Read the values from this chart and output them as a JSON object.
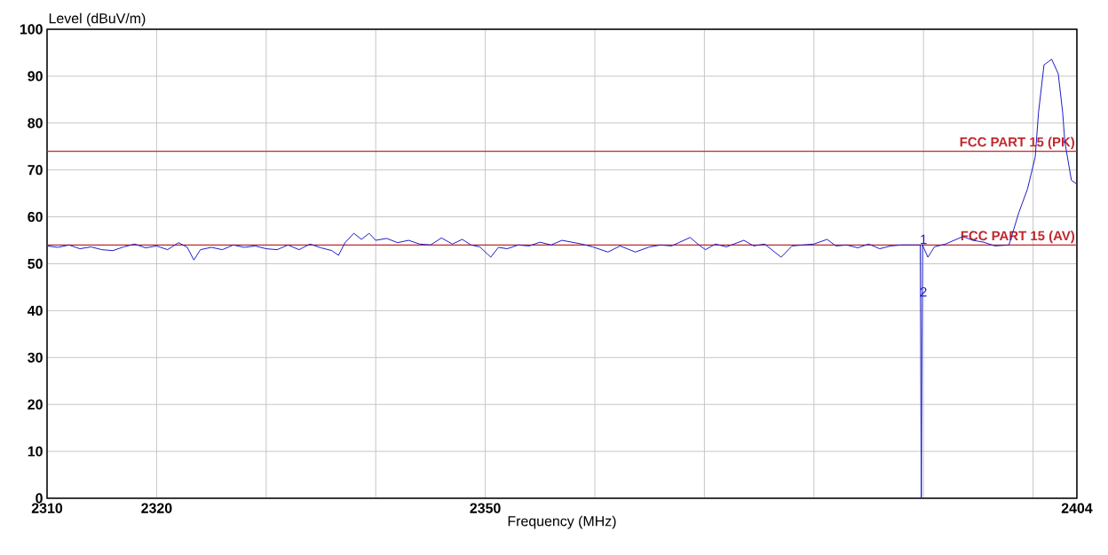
{
  "chart_data": {
    "type": "line",
    "xlabel": "Frequency (MHz)",
    "ylabel": "Level (dBuV/m)",
    "xlim": [
      2310,
      2404
    ],
    "ylim": [
      0,
      100
    ],
    "xticks": [
      2310,
      2320,
      {
        "value": 2330,
        "label": null
      },
      {
        "value": 2340,
        "label": null
      },
      2350,
      {
        "value": 2360,
        "label": null
      },
      {
        "value": 2370,
        "label": null
      },
      {
        "value": 2380,
        "label": null
      },
      {
        "value": 2390,
        "label": null
      },
      {
        "value": 2400,
        "label": null
      },
      2404
    ],
    "yticks": [
      0,
      10,
      20,
      30,
      40,
      50,
      60,
      70,
      80,
      90,
      100
    ],
    "grid": true,
    "marker": "none",
    "line_style": "solid",
    "series": [
      {
        "color": "#1c1cc8",
        "x": [
          2310,
          2311,
          2312,
          2313,
          2314,
          2315,
          2316,
          2317,
          2318,
          2319,
          2320,
          2321,
          2322,
          2322.8,
          2323.4,
          2324,
          2325,
          2326,
          2327,
          2328,
          2329,
          2330,
          2331,
          2332,
          2333,
          2334,
          2335,
          2336,
          2336.6,
          2337.2,
          2338,
          2338.7,
          2339.4,
          2340,
          2341,
          2342,
          2343,
          2344,
          2345,
          2346,
          2347,
          2347.9,
          2348.7,
          2349.5,
          2350.5,
          2351.2,
          2352,
          2353,
          2354,
          2355,
          2356,
          2357,
          2358.8,
          2359.8,
          2361.2,
          2362.3,
          2363.7,
          2365,
          2366,
          2367,
          2368.7,
          2369.5,
          2370.1,
          2371,
          2372,
          2373.6,
          2374.5,
          2375.5,
          2377,
          2378,
          2379,
          2380,
          2381.2,
          2382,
          2383,
          2384,
          2385,
          2386,
          2387,
          2388,
          2389.7,
          2389.8,
          2389.9,
          2390.4,
          2391,
          2392,
          2393.6,
          2394.5,
          2395.5,
          2396.5,
          2397.8,
          2398.7,
          2399.5,
          2400.2,
          2400.5,
          2401,
          2401.7,
          2402.3,
          2402.7,
          2402.9,
          2403.5,
          2404
        ],
        "values": [
          53.8,
          53.5,
          54,
          53.2,
          53.6,
          53,
          52.8,
          53.6,
          54.2,
          53.4,
          53.8,
          53,
          54.5,
          53.5,
          50.8,
          53,
          53.5,
          53,
          54,
          53.5,
          53.8,
          53.2,
          53,
          54,
          53,
          54.2,
          53.4,
          52.8,
          51.8,
          54.5,
          56.5,
          55.2,
          56.5,
          55,
          55.4,
          54.5,
          55,
          54.2,
          54,
          55.5,
          54.2,
          55.2,
          54,
          53.6,
          51.4,
          53.5,
          53.2,
          54,
          53.8,
          54.6,
          54,
          55,
          54.2,
          53.6,
          52.5,
          53.8,
          52.5,
          53.6,
          54,
          53.8,
          55.6,
          54,
          53,
          54.2,
          53.6,
          55,
          53.8,
          54.2,
          51.4,
          53.8,
          54,
          54.2,
          55.2,
          53.8,
          54,
          53.4,
          54.2,
          53.2,
          53.8,
          54,
          54,
          0,
          54,
          51.4,
          53.6,
          54.2,
          55.8,
          55,
          54.6,
          53.8,
          54,
          60.9,
          66,
          72.8,
          82.3,
          92.4,
          93.6,
          90.5,
          82.3,
          76,
          67.8,
          67
        ]
      }
    ],
    "ref_lines": [
      {
        "axis": "y",
        "value": 74,
        "label": "FCC PART 15 (PK)",
        "color": "#c0282d"
      },
      {
        "axis": "y",
        "value": 54,
        "label": "FCC PART 15 (AV)",
        "color": "#c0282d"
      }
    ],
    "annotations": [
      {
        "text": "1",
        "x": 2390,
        "y": 54
      },
      {
        "text": "2",
        "x": 2390,
        "y": 44
      }
    ]
  }
}
